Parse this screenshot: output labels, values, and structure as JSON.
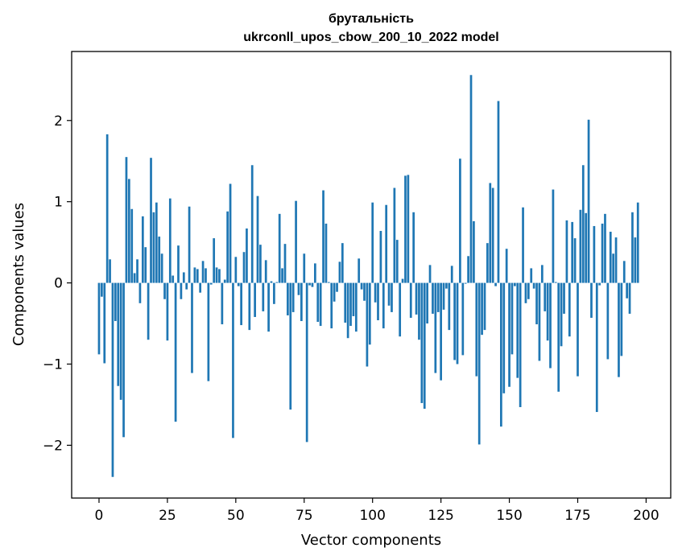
{
  "chart_data": {
    "type": "bar",
    "title": [
      "брутальність",
      "ukrconll_upos_cbow_200_10_2022 model"
    ],
    "xlabel": "Vector components",
    "ylabel": "Components values",
    "xlim": [
      -10,
      209
    ],
    "ylim": [
      -2.65,
      2.85
    ],
    "xticks": [
      0,
      25,
      50,
      75,
      100,
      125,
      150,
      175,
      200
    ],
    "yticks": [
      -2,
      -1,
      0,
      1,
      2
    ],
    "ytick_labels": [
      "−2",
      "−1",
      "0",
      "1",
      "2"
    ],
    "bar_color": "#1f77b4",
    "grid": false,
    "values": [
      -0.88,
      -0.17,
      -0.99,
      1.83,
      0.29,
      -2.39,
      -0.47,
      -1.27,
      -1.44,
      -1.9,
      1.55,
      1.28,
      0.91,
      0.12,
      0.29,
      -0.25,
      0.82,
      0.44,
      -0.7,
      1.54,
      0.87,
      0.99,
      0.57,
      0.36,
      -0.2,
      -0.71,
      1.04,
      0.09,
      -1.71,
      0.46,
      -0.2,
      0.13,
      -0.08,
      0.94,
      -1.11,
      0.19,
      0.17,
      -0.12,
      0.27,
      0.18,
      -1.21,
      -0.02,
      0.55,
      0.19,
      0.17,
      -0.51,
      0.04,
      0.88,
      1.22,
      -1.91,
      0.32,
      -0.04,
      -0.52,
      0.38,
      0.67,
      -0.58,
      1.45,
      -0.42,
      1.07,
      0.47,
      -0.35,
      0.28,
      -0.6,
      0.02,
      -0.26,
      0.01,
      0.85,
      0.18,
      0.48,
      -0.4,
      -1.56,
      -0.36,
      1.01,
      -0.15,
      -0.47,
      0.36,
      -1.96,
      -0.03,
      -0.05,
      0.24,
      -0.48,
      -0.53,
      1.14,
      0.73,
      0.01,
      -0.56,
      -0.23,
      -0.11,
      0.26,
      0.49,
      -0.49,
      -0.68,
      -0.53,
      -0.41,
      -0.6,
      0.3,
      -0.08,
      -0.22,
      -1.03,
      -0.76,
      0.99,
      -0.24,
      -0.46,
      0.64,
      -0.56,
      0.96,
      -0.28,
      -0.36,
      1.17,
      0.53,
      -0.66,
      0.05,
      1.32,
      1.33,
      -0.43,
      0.87,
      -0.39,
      -0.7,
      -1.48,
      -1.55,
      -0.5,
      0.22,
      -0.38,
      -1.11,
      -0.36,
      -1.2,
      -0.33,
      -0.07,
      -0.58,
      0.21,
      -0.95,
      -1.0,
      1.53,
      -0.89,
      -0.01,
      0.33,
      2.56,
      0.76,
      -1.15,
      -1.99,
      -0.64,
      -0.58,
      0.49,
      1.23,
      1.17,
      -0.04,
      2.24,
      -1.77,
      -1.36,
      0.42,
      -1.28,
      -0.88,
      -0.04,
      -1.17,
      -1.53,
      0.93,
      -0.25,
      -0.2,
      0.18,
      -0.07,
      -0.51,
      -0.96,
      0.22,
      -0.35,
      -0.71,
      -1.05,
      1.15,
      0.01,
      -1.34,
      -0.78,
      -0.38,
      0.77,
      -0.66,
      0.75,
      0.55,
      -1.15,
      0.9,
      1.45,
      0.86,
      2.01,
      -0.43,
      0.7,
      -1.59,
      -0.03,
      0.73,
      0.85,
      -0.94,
      0.63,
      0.36,
      0.56,
      -1.16,
      -0.9,
      0.27,
      -0.19,
      -0.38,
      0.87,
      0.56,
      0.99
    ]
  }
}
